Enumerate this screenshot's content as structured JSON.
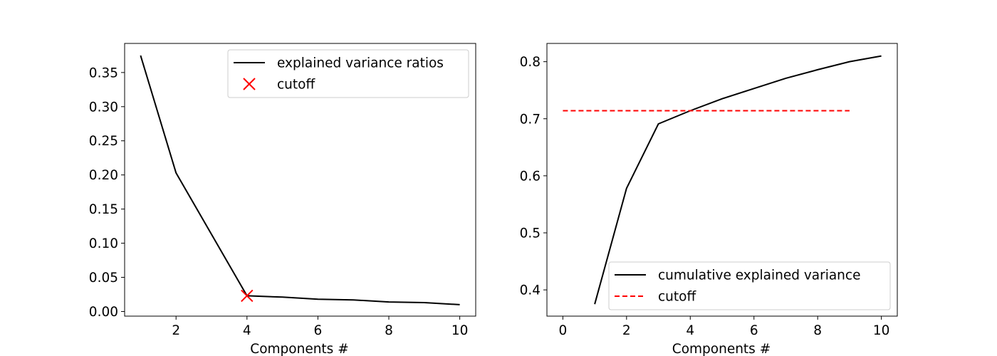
{
  "chart_data": [
    {
      "type": "line",
      "title": "",
      "xlabel": "Components #",
      "ylabel": "",
      "xlim": [
        0.55,
        10.45
      ],
      "ylim": [
        -0.0068,
        0.3926
      ],
      "xticks": [
        2,
        4,
        6,
        8,
        10
      ],
      "yticks": [
        0.0,
        0.05,
        0.1,
        0.15,
        0.2,
        0.25,
        0.3,
        0.35
      ],
      "ytick_labels": [
        "0.00",
        "0.05",
        "0.10",
        "0.15",
        "0.20",
        "0.25",
        "0.30",
        "0.35"
      ],
      "grid": false,
      "legend_position": "top-right",
      "series": [
        {
          "name": "explained variance ratios",
          "kind": "line",
          "color": "#000000",
          "x": [
            1,
            2,
            3,
            4,
            5,
            6,
            7,
            8,
            9,
            10
          ],
          "y": [
            0.375,
            0.203,
            0.113,
            0.023,
            0.021,
            0.018,
            0.017,
            0.014,
            0.013,
            0.01
          ]
        },
        {
          "name": "cutoff",
          "kind": "marker",
          "marker": "x",
          "color": "#ff0000",
          "x": [
            4
          ],
          "y": [
            0.023
          ]
        }
      ]
    },
    {
      "type": "line",
      "title": "",
      "xlabel": "Components #",
      "ylabel": "",
      "xlim": [
        -0.5,
        10.5
      ],
      "ylim": [
        0.354,
        0.832
      ],
      "xticks": [
        0,
        2,
        4,
        6,
        8,
        10
      ],
      "yticks": [
        0.4,
        0.5,
        0.6,
        0.7,
        0.8
      ],
      "ytick_labels": [
        "0.4",
        "0.5",
        "0.6",
        "0.7",
        "0.8"
      ],
      "grid": false,
      "legend_position": "bottom-right",
      "series": [
        {
          "name": "cumulative explained variance",
          "kind": "line",
          "color": "#000000",
          "x": [
            1,
            2,
            3,
            4,
            5,
            6,
            7,
            8,
            9,
            10
          ],
          "y": [
            0.375,
            0.578,
            0.691,
            0.714,
            0.735,
            0.753,
            0.771,
            0.786,
            0.8,
            0.81
          ]
        },
        {
          "name": "cutoff",
          "kind": "dashed",
          "color": "#ff0000",
          "x": [
            0,
            9
          ],
          "y": [
            0.714,
            0.714
          ]
        }
      ]
    }
  ]
}
